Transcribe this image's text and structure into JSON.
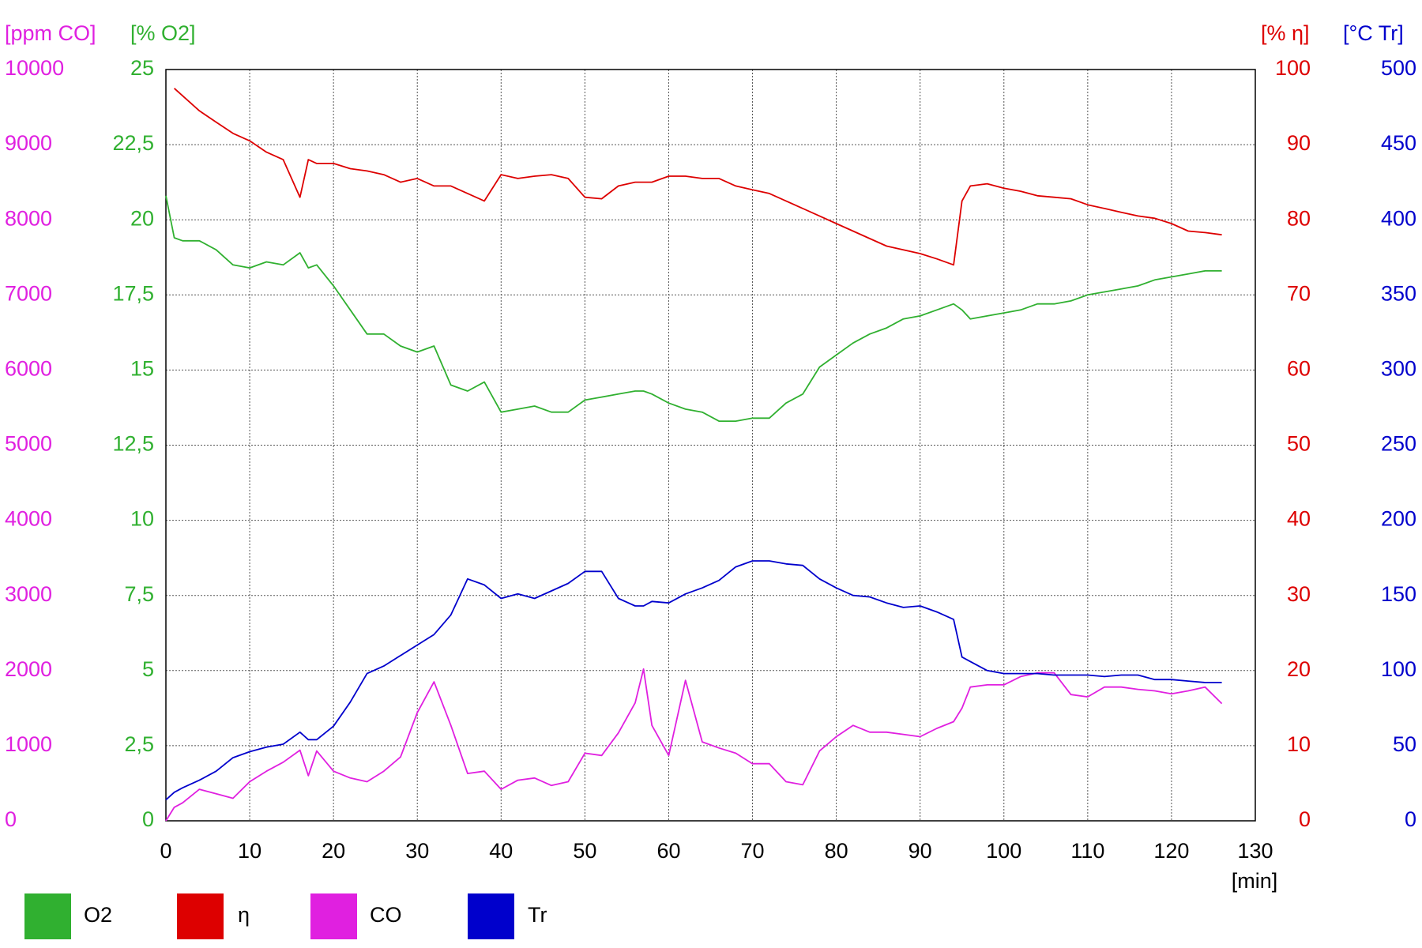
{
  "chart_data": {
    "type": "line",
    "xlabel": "[min]",
    "xlim": [
      0,
      130
    ],
    "xticks": [
      0,
      10,
      20,
      30,
      40,
      50,
      60,
      70,
      80,
      90,
      100,
      110,
      120,
      130
    ],
    "grid": true,
    "axes": [
      {
        "label": "[ppm CO]",
        "color": "#e020e0",
        "lim": [
          0,
          10000
        ],
        "ticks": [
          0,
          1000,
          2000,
          3000,
          4000,
          5000,
          6000,
          7000,
          8000,
          9000,
          10000
        ]
      },
      {
        "label": "[% O2]",
        "color": "#30b030",
        "lim": [
          0,
          25
        ],
        "ticks": [
          0,
          {
            "value": 2.5,
            "label": "2,5"
          },
          5,
          {
            "value": 7.5,
            "label": "7,5"
          },
          10,
          {
            "value": 12.5,
            "label": "12,5"
          },
          15,
          {
            "value": 17.5,
            "label": "17,5"
          },
          20,
          {
            "value": 22.5,
            "label": "22,5"
          },
          25
        ]
      },
      {
        "label": "[% η]",
        "color": "#dd0000",
        "lim": [
          0,
          100
        ],
        "ticks": [
          0,
          10,
          20,
          30,
          40,
          50,
          60,
          70,
          80,
          90,
          100
        ]
      },
      {
        "label": "[°C Tr]",
        "color": "#0000cc",
        "lim": [
          0,
          500
        ],
        "ticks": [
          0,
          50,
          100,
          150,
          200,
          250,
          300,
          350,
          400,
          450,
          500
        ]
      }
    ],
    "x": [
      0,
      1,
      2,
      4,
      6,
      8,
      10,
      12,
      14,
      16,
      17,
      18,
      20,
      22,
      24,
      26,
      28,
      30,
      32,
      34,
      36,
      38,
      40,
      42,
      44,
      46,
      48,
      50,
      52,
      54,
      56,
      57,
      58,
      60,
      62,
      64,
      66,
      68,
      70,
      72,
      74,
      76,
      78,
      80,
      82,
      84,
      86,
      88,
      90,
      92,
      94,
      95,
      96,
      98,
      100,
      102,
      104,
      106,
      108,
      110,
      112,
      114,
      116,
      118,
      120,
      122,
      124,
      126
    ],
    "series": [
      {
        "name": "O2",
        "color": "#30b030",
        "axis": 1,
        "values": [
          20.8,
          19.4,
          19.3,
          19.3,
          19.0,
          18.5,
          18.4,
          18.6,
          18.5,
          18.9,
          18.4,
          18.5,
          17.8,
          17.0,
          16.2,
          16.2,
          15.8,
          15.6,
          15.8,
          14.5,
          14.3,
          14.6,
          13.6,
          13.7,
          13.8,
          13.6,
          13.6,
          14.0,
          14.1,
          14.2,
          14.3,
          14.3,
          14.2,
          13.9,
          13.7,
          13.6,
          13.3,
          13.3,
          13.4,
          13.4,
          13.9,
          14.2,
          15.1,
          15.5,
          15.9,
          16.2,
          16.4,
          16.7,
          16.8,
          17.0,
          17.2,
          17.0,
          16.7,
          16.8,
          16.9,
          17.0,
          17.2,
          17.2,
          17.3,
          17.5,
          17.6,
          17.7,
          17.8,
          18.0,
          18.1,
          18.2,
          18.3,
          18.3
        ]
      },
      {
        "name": "η",
        "color": "#dd0000",
        "axis": 2,
        "values": [
          null,
          97.5,
          96.5,
          94.5,
          93,
          91.5,
          90.5,
          89,
          88,
          83,
          88,
          87.5,
          87.5,
          86.8,
          86.5,
          86,
          85,
          85.5,
          84.5,
          84.5,
          83.5,
          82.5,
          86,
          85.5,
          85.8,
          86,
          85.5,
          83,
          82.8,
          84.5,
          85,
          85,
          85,
          85.8,
          85.8,
          85.5,
          85.5,
          84.5,
          84,
          83.5,
          82.5,
          81.5,
          80.5,
          79.5,
          78.5,
          77.5,
          76.5,
          76,
          75.5,
          74.8,
          74,
          82.5,
          84.5,
          84.8,
          84.2,
          83.8,
          83.2,
          83,
          82.8,
          82,
          81.5,
          81,
          80.5,
          80.2,
          79.5,
          78.5,
          78.3,
          78
        ]
      },
      {
        "name": "CO",
        "color": "#e020e0",
        "axis": 0,
        "values": [
          0,
          180,
          240,
          420,
          360,
          300,
          520,
          660,
          780,
          940,
          600,
          930,
          660,
          570,
          520,
          660,
          850,
          1440,
          1850,
          1270,
          630,
          660,
          420,
          540,
          570,
          470,
          520,
          900,
          870,
          1170,
          1570,
          2020,
          1270,
          870,
          1870,
          1050,
          970,
          900,
          760,
          760,
          520,
          480,
          930,
          1120,
          1270,
          1180,
          1180,
          1150,
          1120,
          1230,
          1320,
          1500,
          1780,
          1810,
          1810,
          1920,
          1970,
          1970,
          1680,
          1650,
          1780,
          1780,
          1750,
          1730,
          1690,
          1730,
          1780,
          1560
        ]
      },
      {
        "name": "Tr",
        "color": "#0000cc",
        "axis": 3,
        "values": [
          14,
          19,
          22,
          27,
          33,
          42,
          46,
          49,
          51,
          59,
          54,
          54,
          63,
          79,
          98,
          103,
          110,
          117,
          124,
          137,
          161,
          157,
          148,
          151,
          148,
          153,
          158,
          166,
          166,
          148,
          143,
          143,
          146,
          145,
          151,
          155,
          160,
          169,
          173,
          173,
          171,
          170,
          161,
          155,
          150,
          149,
          145,
          142,
          143,
          139,
          134,
          109,
          106,
          100,
          98,
          98,
          98,
          97,
          97,
          97,
          96,
          97,
          97,
          94,
          94,
          93,
          92,
          92
        ]
      }
    ]
  }
}
